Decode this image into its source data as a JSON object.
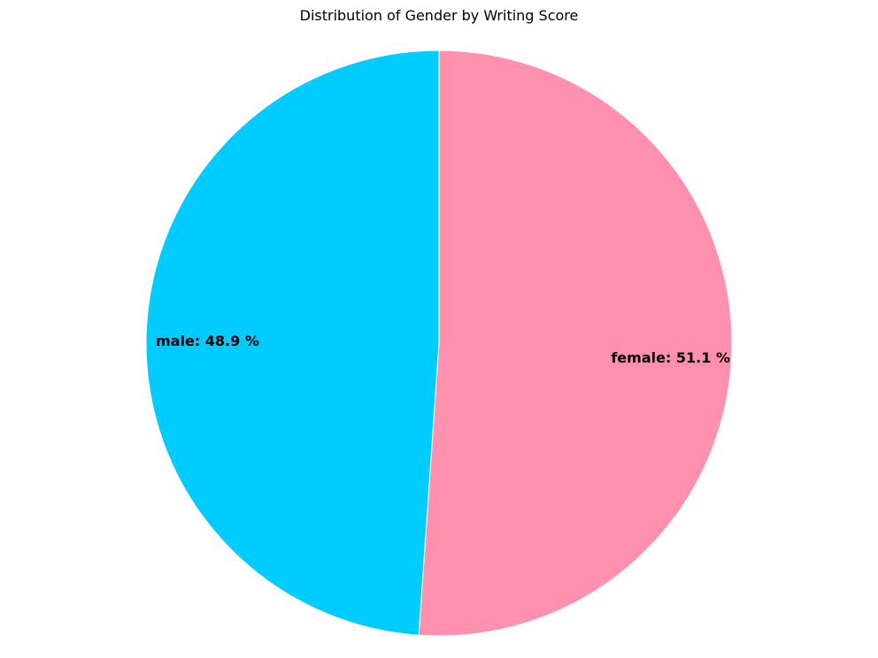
{
  "chart_data": {
    "type": "pie",
    "title": "Distribution of Gender by Writing Score",
    "slices": [
      {
        "name": "female",
        "value": 51.1,
        "label": "female: 51.1 %",
        "color": "#FF91AF"
      },
      {
        "name": "male",
        "value": 48.9,
        "label": "male: 48.9 %",
        "color": "#00CCFF"
      }
    ],
    "start_position": "top",
    "direction": "clockwise",
    "legend": "none"
  }
}
